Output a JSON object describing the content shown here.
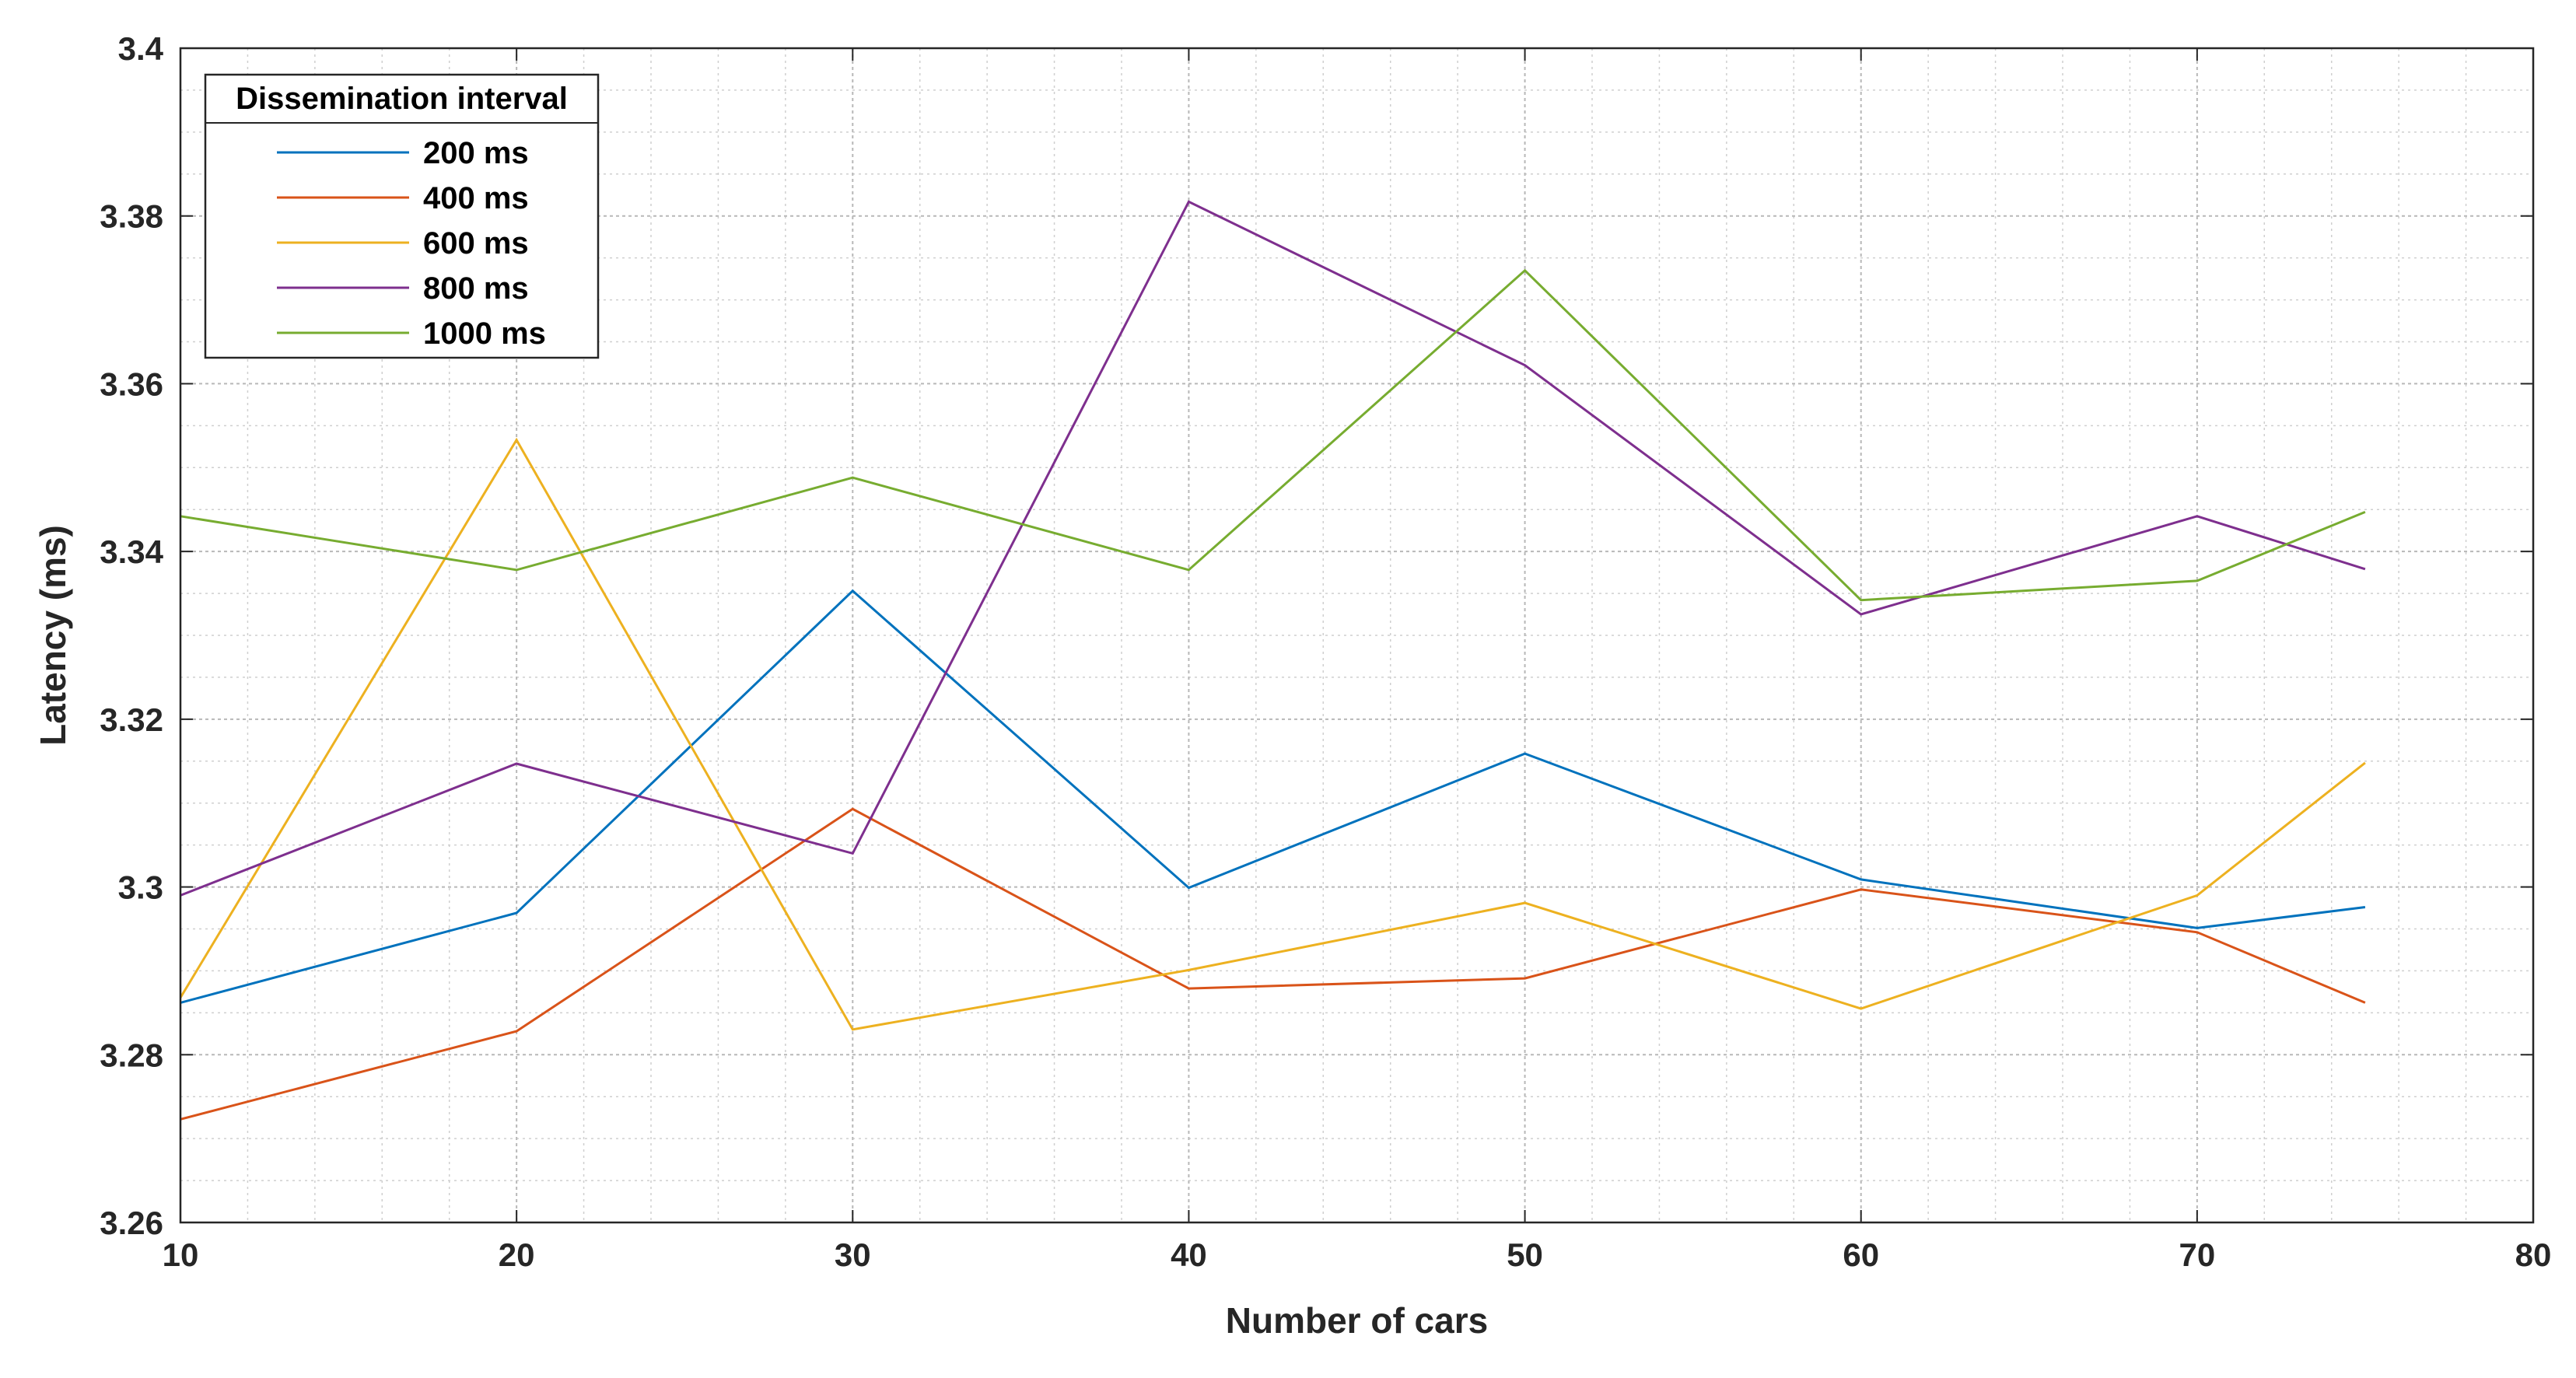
{
  "chart_data": {
    "type": "line",
    "title": "",
    "xlabel": "Number of cars",
    "ylabel": "Latency (ms)",
    "xlim": [
      10,
      80
    ],
    "ylim": [
      3.26,
      3.4
    ],
    "x_ticks": [
      10,
      20,
      30,
      40,
      50,
      60,
      70,
      80
    ],
    "y_ticks": [
      3.26,
      3.28,
      3.3,
      3.32,
      3.34,
      3.36,
      3.38,
      3.4
    ],
    "x_tick_labels": [
      "10",
      "20",
      "30",
      "40",
      "50",
      "60",
      "70",
      "80"
    ],
    "y_tick_labels": [
      "3.26",
      "3.28",
      "3.3",
      "3.32",
      "3.34",
      "3.36",
      "3.38",
      "3.4"
    ],
    "grid": "major and minor",
    "legend": {
      "title": "Dissemination interval",
      "placement": "top-left"
    },
    "x": [
      10,
      20,
      30,
      40,
      50,
      60,
      70,
      75
    ],
    "series": [
      {
        "name": "200 ms",
        "color": "#0072BD",
        "values": [
          3.2862,
          3.2969,
          3.3353,
          3.2999,
          3.3159,
          3.3009,
          3.2951,
          3.2976
        ]
      },
      {
        "name": "400 ms",
        "color": "#D95319",
        "values": [
          3.2723,
          3.2828,
          3.3093,
          3.2879,
          3.2891,
          3.2997,
          3.2946,
          3.2862
        ]
      },
      {
        "name": "600 ms",
        "color": "#EDB120",
        "values": [
          3.2868,
          3.3533,
          3.283,
          3.2901,
          3.2981,
          3.2855,
          3.299,
          3.3148
        ]
      },
      {
        "name": "800 ms",
        "color": "#7E2F8E",
        "values": [
          3.299,
          3.3147,
          3.304,
          3.3817,
          3.3622,
          3.3325,
          3.3442,
          3.3379
        ]
      },
      {
        "name": "1000 ms",
        "color": "#77AC30",
        "values": [
          3.3442,
          3.3378,
          3.3488,
          3.3378,
          3.3735,
          3.3342,
          3.3365,
          3.3447
        ]
      }
    ]
  }
}
